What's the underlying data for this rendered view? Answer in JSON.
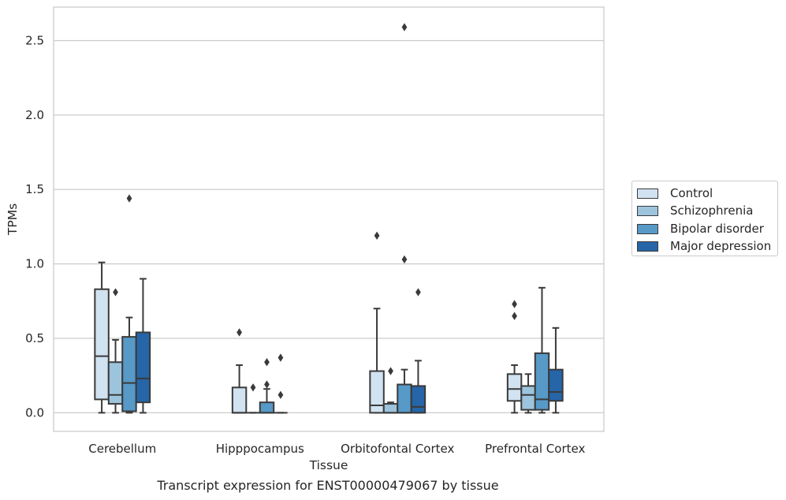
{
  "chart_data": {
    "type": "boxplot",
    "title": "",
    "xlabel": "Tissue",
    "ylabel": "TPMs",
    "ylim": [
      -0.125,
      2.725
    ],
    "yticks": [
      "0.0",
      "0.5",
      "1.0",
      "1.5",
      "2.0",
      "2.5"
    ],
    "ytick_values": [
      0,
      0.5,
      1.0,
      1.5,
      2.0,
      2.5
    ],
    "grid": true,
    "legend_position": "right",
    "categories": [
      "Cerebellum",
      "Hipppocampus",
      "Orbitofontal Cortex",
      "Prefrontal Cortex"
    ],
    "series": [
      {
        "name": "Control",
        "color": "#d1e2f1",
        "boxes": [
          {
            "q1": 0.09,
            "median": 0.38,
            "q3": 0.83,
            "whisker_low": 0.0,
            "whisker_high": 1.01,
            "outliers": []
          },
          {
            "q1": 0.0,
            "median": 0.0,
            "q3": 0.17,
            "whisker_low": 0.0,
            "whisker_high": 0.32,
            "outliers": [
              0.54
            ]
          },
          {
            "q1": 0.0,
            "median": 0.05,
            "q3": 0.28,
            "whisker_low": 0.0,
            "whisker_high": 0.7,
            "outliers": [
              1.19
            ]
          },
          {
            "q1": 0.08,
            "median": 0.16,
            "q3": 0.26,
            "whisker_low": 0.0,
            "whisker_high": 0.32,
            "outliers": [
              0.65,
              0.73
            ]
          }
        ]
      },
      {
        "name": "Schizophrenia",
        "color": "#9dc4dd",
        "boxes": [
          {
            "q1": 0.06,
            "median": 0.12,
            "q3": 0.34,
            "whisker_low": 0.0,
            "whisker_high": 0.49,
            "outliers": [
              0.81
            ]
          },
          {
            "q1": 0.0,
            "median": 0.0,
            "q3": 0.0,
            "whisker_low": 0.0,
            "whisker_high": 0.0,
            "outliers": [
              0.17
            ]
          },
          {
            "q1": 0.0,
            "median": 0.0,
            "q3": 0.06,
            "whisker_low": 0.0,
            "whisker_high": 0.07,
            "outliers": [
              0.28
            ]
          },
          {
            "q1": 0.02,
            "median": 0.12,
            "q3": 0.18,
            "whisker_low": 0.0,
            "whisker_high": 0.26,
            "outliers": []
          }
        ]
      },
      {
        "name": "Bipolar disorder",
        "color": "#5799c7",
        "boxes": [
          {
            "q1": 0.01,
            "median": 0.2,
            "q3": 0.51,
            "whisker_low": 0.0,
            "whisker_high": 0.64,
            "outliers": [
              1.44
            ]
          },
          {
            "q1": 0.0,
            "median": 0.0,
            "q3": 0.07,
            "whisker_low": 0.0,
            "whisker_high": 0.16,
            "outliers": [
              0.19,
              0.34
            ]
          },
          {
            "q1": 0.0,
            "median": 0.0,
            "q3": 0.19,
            "whisker_low": 0.0,
            "whisker_high": 0.29,
            "outliers": [
              1.03,
              2.59
            ]
          },
          {
            "q1": 0.02,
            "median": 0.09,
            "q3": 0.4,
            "whisker_low": 0.0,
            "whisker_high": 0.84,
            "outliers": []
          }
        ]
      },
      {
        "name": "Major depression",
        "color": "#2665a8",
        "boxes": [
          {
            "q1": 0.07,
            "median": 0.23,
            "q3": 0.54,
            "whisker_low": 0.0,
            "whisker_high": 0.9,
            "outliers": []
          },
          {
            "q1": 0.0,
            "median": 0.0,
            "q3": 0.0,
            "whisker_low": 0.0,
            "whisker_high": 0.0,
            "outliers": [
              0.12,
              0.37
            ]
          },
          {
            "q1": 0.0,
            "median": 0.04,
            "q3": 0.18,
            "whisker_low": 0.0,
            "whisker_high": 0.35,
            "outliers": [
              0.81
            ]
          },
          {
            "q1": 0.08,
            "median": 0.14,
            "q3": 0.29,
            "whisker_low": 0.0,
            "whisker_high": 0.57,
            "outliers": []
          }
        ]
      }
    ]
  },
  "caption": "Transcript expression for ENST00000479067 by tissue"
}
